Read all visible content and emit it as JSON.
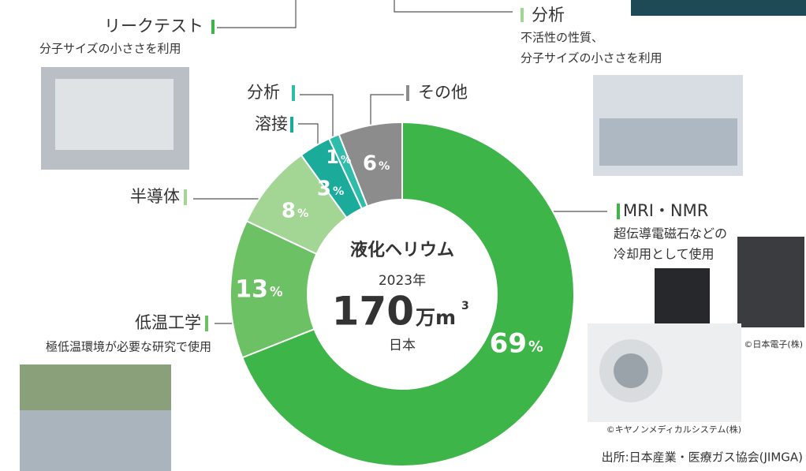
{
  "chart_data": {
    "type": "donut",
    "categories": [
      "MRI・NMR",
      "低温工学",
      "半導体",
      "溶接",
      "分析",
      "その他"
    ],
    "values": [
      69,
      13,
      8,
      3,
      1,
      6
    ],
    "unit": "%",
    "colors": [
      "#3db549",
      "#6cc164",
      "#a3d595",
      "#1aab9b",
      "#2fbcab",
      "#8c8c8c"
    ],
    "center": {
      "title": "液化ヘリウム",
      "year": "2023年",
      "total": "170",
      "total_unit": "万m",
      "total_unit_sup": "3",
      "region": "日本"
    },
    "notes": {
      "mri": [
        "超伝導電磁石などの",
        "冷却用として使用"
      ],
      "cryo": "極低温環境が必要な研究で使用"
    }
  },
  "annotations": {
    "leak_test": {
      "label": "リークテスト",
      "note": "分子サイズの小ささを利用"
    },
    "analysis_use": {
      "label": "分析",
      "note": [
        "不活性の性質、",
        "分子サイズの小ささを利用"
      ]
    },
    "credits": [
      "©日本電子(株)",
      "©キヤノンメディカルシステム(株)"
    ],
    "source": "出所:日本産業・医療ガス協会(JIMGA)"
  }
}
